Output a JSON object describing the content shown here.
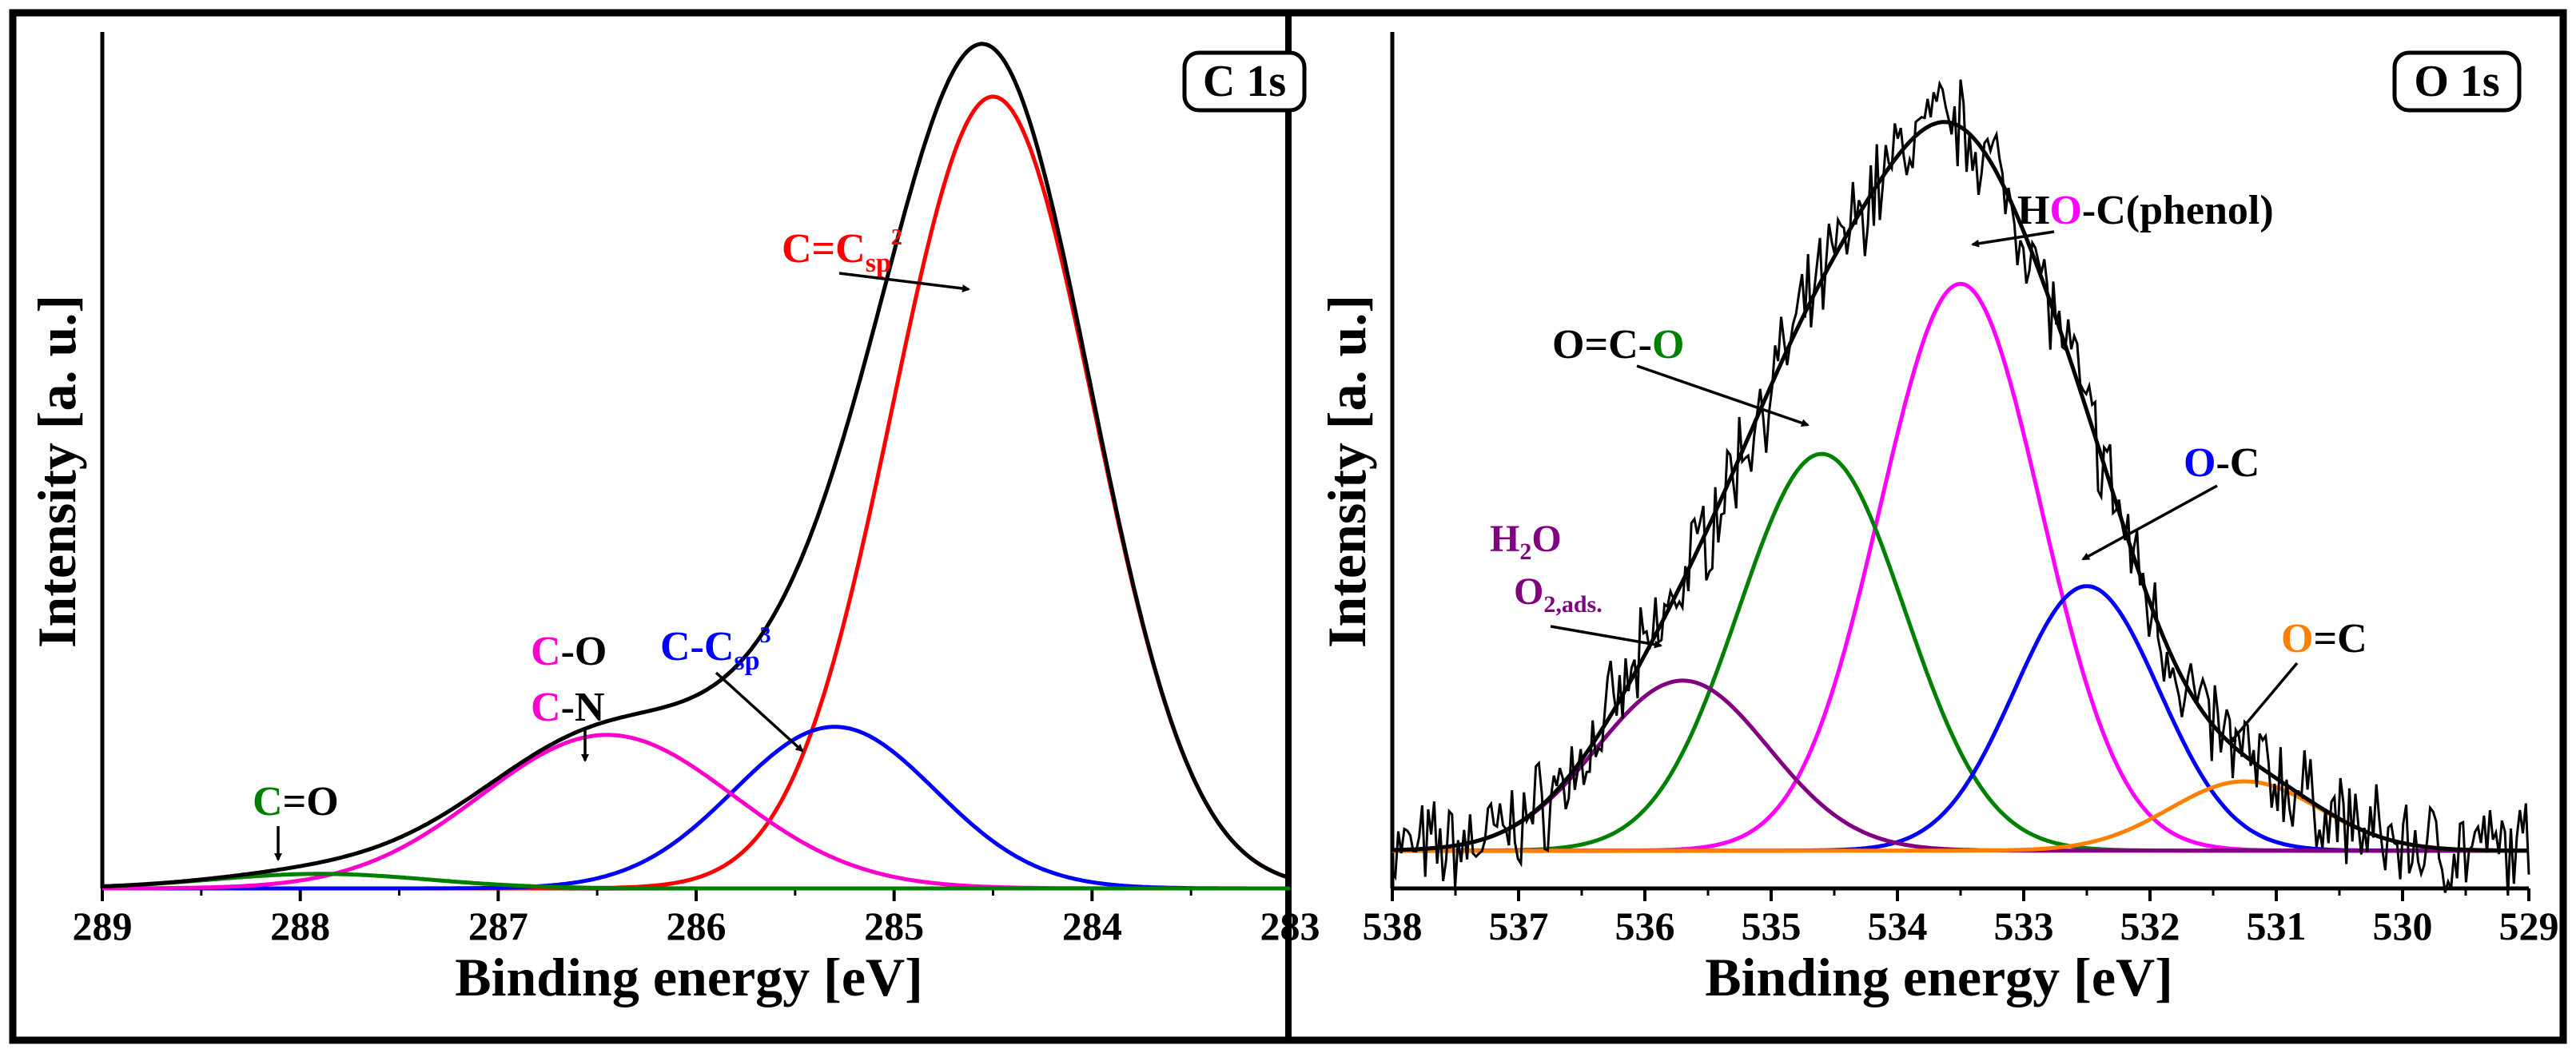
{
  "chart_data": [
    {
      "type": "line",
      "title": "C 1s",
      "xlabel": "Binding energy [eV]",
      "ylabel": "Intensity [a. u.]",
      "xlim": [
        289,
        283
      ],
      "ylim": [
        0,
        1.06
      ],
      "x_ticks": [
        "289",
        "288",
        "287",
        "286",
        "285",
        "284",
        "283"
      ],
      "series": [
        {
          "name": "envelope",
          "color": "#000000"
        },
        {
          "name": "C=Csp2",
          "color": "#ff0000",
          "peak": {
            "center": 284.5,
            "height": 0.98,
            "fwhm": 1.2
          }
        },
        {
          "name": "C-Csp3",
          "color": "#0000ff",
          "peak": {
            "center": 285.3,
            "height": 0.2,
            "fwhm": 1.2
          }
        },
        {
          "name": "C-O / C-N",
          "color": "#ff00cc",
          "peak": {
            "center": 286.45,
            "height": 0.19,
            "fwhm": 1.5
          }
        },
        {
          "name": "C=O",
          "color": "#008000",
          "peak": {
            "center": 287.9,
            "height": 0.018,
            "fwhm": 1.3
          }
        }
      ],
      "annotations": {
        "csp2": {
          "pre": "C=C",
          "sub": "sp",
          "sup": "2"
        },
        "csp3": {
          "pre": "C-C",
          "sub": "sp",
          "sup": "3"
        },
        "co": {
          "c": "C",
          "rest": "-O"
        },
        "cn": {
          "c": "C",
          "rest": "-N"
        },
        "c_eq_o": {
          "c": "C",
          "rest": "=O"
        }
      }
    },
    {
      "type": "line",
      "title": "O 1s",
      "xlabel": "Binding energy [eV]",
      "ylabel": "Intensity [a. u.]",
      "xlim": [
        538,
        529
      ],
      "ylim": [
        -0.06,
        1.3
      ],
      "x_ticks": [
        "538",
        "537",
        "536",
        "535",
        "534",
        "533",
        "532",
        "531",
        "530",
        "529"
      ],
      "series": [
        {
          "name": "raw",
          "color": "#000000"
        },
        {
          "name": "envelope",
          "color": "#000000"
        },
        {
          "name": "HO-C(phenol)",
          "color": "#ff00ff",
          "peak": {
            "center": 533.5,
            "height": 0.9,
            "fwhm": 1.5
          }
        },
        {
          "name": "O=C-O",
          "color": "#008000",
          "peak": {
            "center": 534.6,
            "height": 0.63,
            "fwhm": 1.55
          }
        },
        {
          "name": "O-C",
          "color": "#0000ff",
          "peak": {
            "center": 532.5,
            "height": 0.42,
            "fwhm": 1.35
          }
        },
        {
          "name": "H2O / O2,ads.",
          "color": "#800080",
          "peak": {
            "center": 535.7,
            "height": 0.27,
            "fwhm": 1.6
          }
        },
        {
          "name": "O=C",
          "color": "#ff8000",
          "peak": {
            "center": 531.25,
            "height": 0.11,
            "fwhm": 1.4
          }
        }
      ],
      "annotations": {
        "phenol": {
          "h": "H",
          "o": "O",
          "rest": "-C(phenol)"
        },
        "ococ": {
          "pre": "O=C-",
          "o": "O"
        },
        "oc": {
          "o": "O",
          "rest": "-C"
        },
        "h2o": {
          "h": "H",
          "sub": "2",
          "o": "O"
        },
        "o2ads": {
          "o": "O",
          "sub": "2,ads."
        },
        "o_eq_c": {
          "o": "O",
          "rest": "=C"
        }
      }
    }
  ]
}
